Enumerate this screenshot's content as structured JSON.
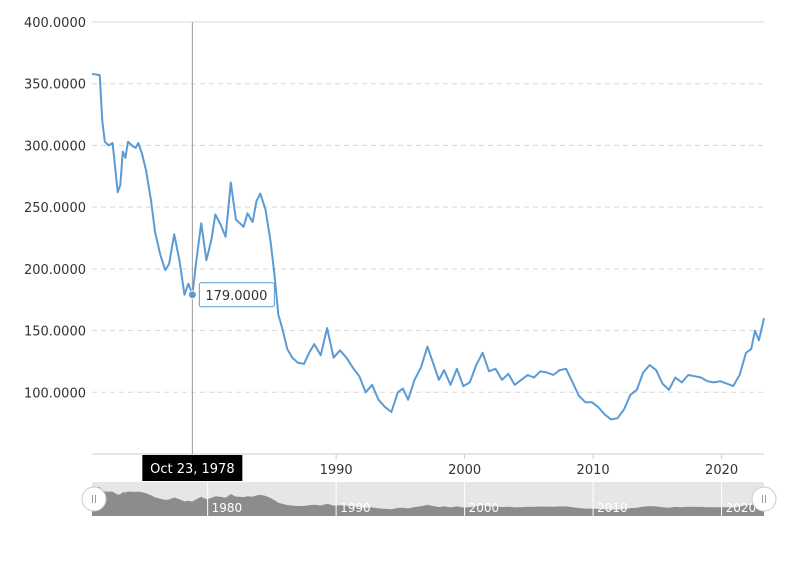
{
  "chart_data": {
    "type": "line",
    "title": "",
    "xlabel": "",
    "ylabel": "",
    "x_range": [
      1971.0,
      2023.3
    ],
    "ylim": [
      50,
      400
    ],
    "y_ticks": [
      "100.0000",
      "150.0000",
      "200.0000",
      "250.0000",
      "300.0000",
      "350.0000",
      "400.0000"
    ],
    "y_tick_values": [
      100,
      150,
      200,
      250,
      300,
      350,
      400
    ],
    "x_ticks": [
      "1990",
      "2000",
      "2010",
      "2020"
    ],
    "x_tick_values": [
      1990,
      2000,
      2010,
      2020
    ],
    "navigator_ticks": [
      "1980",
      "1990",
      "2000",
      "2010",
      "2020"
    ],
    "navigator_tick_values": [
      1980,
      1990,
      2000,
      2010,
      2020
    ],
    "grid": true,
    "line_color": "#5b9bd5",
    "series": [
      {
        "x": [
          1971.0,
          1971.6,
          1971.8,
          1972.0,
          1972.3,
          1972.6,
          1973.0,
          1973.2,
          1973.4,
          1973.6,
          1973.8,
          1974.1,
          1974.4,
          1974.6,
          1974.9,
          1975.2,
          1975.6,
          1975.9,
          1976.3,
          1976.7,
          1977.0,
          1977.4,
          1977.8,
          1978.2,
          1978.5,
          1978.81,
          1979.1,
          1979.5,
          1979.9,
          1980.3,
          1980.6,
          1981.0,
          1981.4,
          1981.8,
          1982.2,
          1982.5,
          1982.8,
          1983.1,
          1983.5,
          1983.8,
          1984.1,
          1984.5,
          1984.9,
          1985.2,
          1985.5,
          1985.8,
          1986.2,
          1986.6,
          1987.0,
          1987.5,
          1987.9,
          1988.3,
          1988.8,
          1989.3,
          1989.8,
          1990.3,
          1990.8,
          1991.3,
          1991.8,
          1992.3,
          1992.8,
          1993.3,
          1993.8,
          1994.3,
          1994.8,
          1995.2,
          1995.6,
          1996.1,
          1996.6,
          1997.1,
          1997.6,
          1998.0,
          1998.4,
          1998.9,
          1999.4,
          1999.9,
          2000.4,
          2000.9,
          2001.4,
          2001.9,
          2002.4,
          2002.9,
          2003.4,
          2003.9,
          2004.4,
          2004.9,
          2005.4,
          2005.9,
          2006.4,
          2006.9,
          2007.4,
          2007.9,
          2008.4,
          2008.9,
          2009.4,
          2009.9,
          2010.4,
          2010.9,
          2011.4,
          2011.9,
          2012.4,
          2012.9,
          2013.4,
          2013.9,
          2014.4,
          2014.9,
          2015.4,
          2015.9,
          2016.4,
          2016.9,
          2017.4,
          2017.9,
          2018.4,
          2018.9,
          2019.4,
          2019.9,
          2020.4,
          2020.9,
          2021.4,
          2021.9,
          2022.3,
          2022.6,
          2022.9,
          2023.3
        ],
        "y": [
          358,
          357,
          320,
          303,
          300,
          302,
          262,
          268,
          295,
          290,
          303,
          300,
          298,
          302,
          293,
          280,
          255,
          230,
          212,
          199,
          204,
          228,
          207,
          179,
          188,
          179,
          205,
          237,
          207,
          224,
          244,
          236,
          226,
          270,
          240,
          237,
          234,
          245,
          238,
          255,
          261,
          248,
          222,
          195,
          163,
          152,
          135,
          128,
          124,
          123,
          132,
          139,
          130,
          152,
          128,
          134,
          128,
          120,
          113,
          100,
          106,
          94,
          88,
          84,
          100,
          103,
          94,
          110,
          120,
          137,
          122,
          110,
          118,
          106,
          119,
          105,
          108,
          122,
          132,
          117,
          119,
          110,
          115,
          106,
          110,
          114,
          112,
          117,
          116,
          114,
          118,
          119,
          108,
          97,
          92,
          92,
          88,
          82,
          78,
          79,
          86,
          98,
          102,
          116,
          122,
          118,
          107,
          102,
          112,
          108,
          114,
          113,
          112,
          109,
          108,
          109,
          107,
          105,
          114,
          132,
          135,
          150,
          142,
          160
        ]
      }
    ],
    "tooltip": {
      "label": "179.0000",
      "date": "Oct 23, 1978",
      "x": 1978.81,
      "y": 179
    }
  }
}
